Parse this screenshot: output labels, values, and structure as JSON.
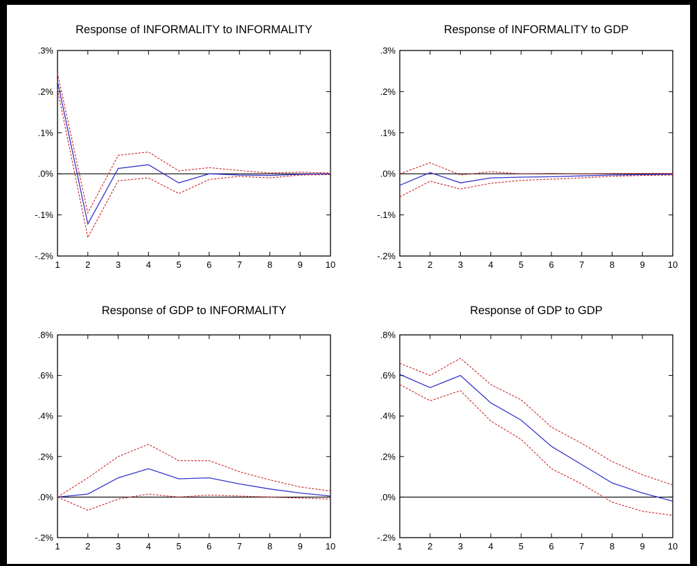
{
  "colors": {
    "response": "#3333cc",
    "band": "#cc2222",
    "zero_line": "#000000",
    "background": "#ffffff",
    "frame": "#000000"
  },
  "chart_data": [
    {
      "type": "line",
      "title": "Response of INFORMALITY to INFORMALITY",
      "x": [
        1,
        2,
        3,
        4,
        5,
        6,
        7,
        8,
        9,
        10
      ],
      "ylim": [
        -0.2,
        0.3
      ],
      "yticks": [
        0.3,
        0.2,
        0.1,
        0.0,
        -0.1,
        -0.2
      ],
      "ytick_labels": [
        ".3%",
        ".2%",
        ".1%",
        ".0%",
        "-.1%",
        "-.2%"
      ],
      "xtick_labels": [
        "1",
        "2",
        "3",
        "4",
        "5",
        "6",
        "7",
        "8",
        "9",
        "10"
      ],
      "zero_line": true,
      "series": [
        {
          "role": "response",
          "values": [
            0.225,
            -0.122,
            0.013,
            0.022,
            -0.022,
            0.0,
            -0.003,
            -0.004,
            -0.001,
            0.0
          ]
        },
        {
          "role": "upper",
          "values": [
            0.245,
            -0.095,
            0.045,
            0.053,
            0.007,
            0.015,
            0.008,
            0.002,
            0.004,
            0.002
          ]
        },
        {
          "role": "lower",
          "values": [
            0.205,
            -0.155,
            -0.017,
            -0.01,
            -0.048,
            -0.014,
            -0.006,
            -0.01,
            -0.003,
            -0.002
          ]
        }
      ]
    },
    {
      "type": "line",
      "title": "Response of INFORMALITY to GDP",
      "x": [
        1,
        2,
        3,
        4,
        5,
        6,
        7,
        8,
        9,
        10
      ],
      "ylim": [
        -0.2,
        0.3
      ],
      "yticks": [
        0.3,
        0.2,
        0.1,
        0.0,
        -0.1,
        -0.2
      ],
      "ytick_labels": [
        ".3%",
        ".2%",
        ".1%",
        ".0%",
        "-.1%",
        "-.2%"
      ],
      "xtick_labels": [
        "1",
        "2",
        "3",
        "4",
        "5",
        "6",
        "7",
        "8",
        "9",
        "10"
      ],
      "zero_line": true,
      "series": [
        {
          "role": "response",
          "values": [
            -0.028,
            0.003,
            -0.022,
            -0.01,
            -0.008,
            -0.007,
            -0.005,
            -0.003,
            -0.002,
            -0.001
          ]
        },
        {
          "role": "upper",
          "values": [
            0.0,
            0.027,
            -0.003,
            0.005,
            0.0,
            0.001,
            0.0,
            0.001,
            0.001,
            0.001
          ]
        },
        {
          "role": "lower",
          "values": [
            -0.056,
            -0.018,
            -0.037,
            -0.023,
            -0.016,
            -0.013,
            -0.01,
            -0.006,
            -0.004,
            -0.003
          ]
        }
      ]
    },
    {
      "type": "line",
      "title": "Response of GDP to INFORMALITY",
      "x": [
        1,
        2,
        3,
        4,
        5,
        6,
        7,
        8,
        9,
        10
      ],
      "ylim": [
        -0.2,
        0.8
      ],
      "yticks": [
        0.8,
        0.6,
        0.4,
        0.2,
        0.0,
        -0.2
      ],
      "ytick_labels": [
        ".8%",
        ".6%",
        ".4%",
        ".2%",
        ".0%",
        "-.2%"
      ],
      "xtick_labels": [
        "1",
        "2",
        "3",
        "4",
        "5",
        "6",
        "7",
        "8",
        "9",
        "10"
      ],
      "zero_line": true,
      "series": [
        {
          "role": "response",
          "values": [
            0.0,
            0.015,
            0.095,
            0.14,
            0.09,
            0.095,
            0.065,
            0.04,
            0.02,
            0.005
          ]
        },
        {
          "role": "upper",
          "values": [
            0.0,
            0.095,
            0.2,
            0.26,
            0.18,
            0.18,
            0.125,
            0.085,
            0.05,
            0.03
          ]
        },
        {
          "role": "lower",
          "values": [
            0.0,
            -0.065,
            -0.01,
            0.015,
            0.0,
            0.01,
            0.005,
            0.0,
            -0.005,
            -0.01
          ]
        }
      ]
    },
    {
      "type": "line",
      "title": "Response of GDP to GDP",
      "x": [
        1,
        2,
        3,
        4,
        5,
        6,
        7,
        8,
        9,
        10
      ],
      "ylim": [
        -0.2,
        0.8
      ],
      "yticks": [
        0.8,
        0.6,
        0.4,
        0.2,
        0.0,
        -0.2
      ],
      "ytick_labels": [
        ".8%",
        ".6%",
        ".4%",
        ".2%",
        ".0%",
        "-.2%"
      ],
      "xtick_labels": [
        "1",
        "2",
        "3",
        "4",
        "5",
        "6",
        "7",
        "8",
        "9",
        "10"
      ],
      "zero_line": true,
      "series": [
        {
          "role": "response",
          "values": [
            0.605,
            0.54,
            0.6,
            0.465,
            0.38,
            0.25,
            0.16,
            0.07,
            0.02,
            -0.02
          ]
        },
        {
          "role": "upper",
          "values": [
            0.66,
            0.6,
            0.685,
            0.555,
            0.48,
            0.345,
            0.265,
            0.175,
            0.11,
            0.06
          ]
        },
        {
          "role": "lower",
          "values": [
            0.555,
            0.475,
            0.525,
            0.375,
            0.285,
            0.14,
            0.065,
            -0.025,
            -0.07,
            -0.09
          ]
        }
      ]
    }
  ]
}
